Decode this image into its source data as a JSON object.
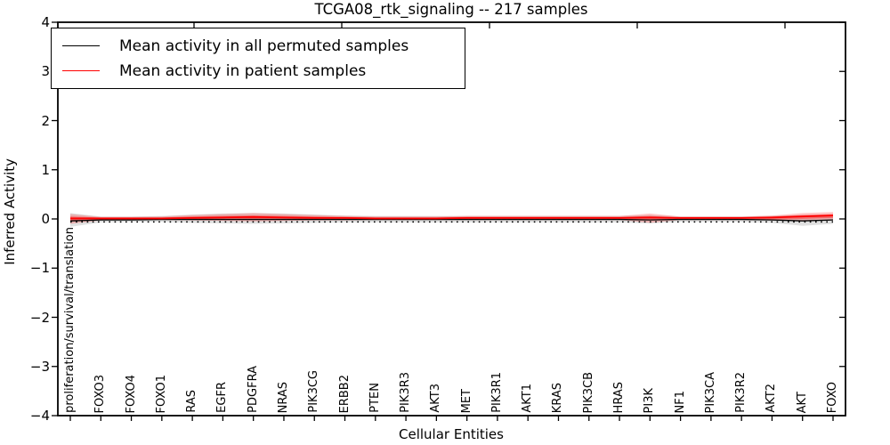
{
  "title": "TCGA08_rtk_signaling -- 217 samples",
  "legend": {
    "items": [
      {
        "label": "Mean activity in all permuted samples",
        "color": "#000000"
      },
      {
        "label": "Mean activity in patient samples",
        "color": "#ff0000"
      }
    ]
  },
  "chart_data": {
    "type": "line",
    "title": "TCGA08_rtk_signaling -- 217 samples",
    "xlabel": "Cellular Entities",
    "ylabel": "Inferred Activity",
    "ylim": [
      -4,
      4
    ],
    "yticks": [
      {
        "value": 4,
        "label": "4"
      },
      {
        "value": 3,
        "label": "3"
      },
      {
        "value": 2,
        "label": "2"
      },
      {
        "value": 1,
        "label": "1"
      },
      {
        "value": 0,
        "label": "0"
      },
      {
        "value": -1,
        "label": "−1"
      },
      {
        "value": -2,
        "label": "−2"
      },
      {
        "value": -3,
        "label": "−3"
      },
      {
        "value": -4,
        "label": "−4"
      }
    ],
    "grid": false,
    "legend_position": "upper left",
    "categories": [
      "proliferation/survival/translation",
      "FOXO3",
      "FOXO4",
      "FOXO1",
      "RAS",
      "EGFR",
      "PDGFRA",
      "NRAS",
      "PIK3CG",
      "ERBB2",
      "PTEN",
      "PIK3R3",
      "AKT3",
      "MET",
      "PIK3R1",
      "AKT1",
      "KRAS",
      "PIK3CB",
      "HRAS",
      "PI3K",
      "NF1",
      "PIK3CA",
      "PIK3R2",
      "AKT2",
      "AKT",
      "FOXO"
    ],
    "series": [
      {
        "name": "Mean activity in all permuted samples",
        "color": "#000000",
        "style": "solid",
        "width": 1.3,
        "values": [
          -0.04,
          -0.02,
          -0.02,
          -0.01,
          -0.01,
          -0.01,
          -0.01,
          -0.01,
          -0.01,
          -0.01,
          -0.01,
          -0.01,
          -0.01,
          -0.01,
          -0.01,
          -0.01,
          -0.01,
          -0.01,
          -0.01,
          -0.02,
          -0.01,
          -0.01,
          -0.01,
          -0.02,
          -0.04,
          -0.02
        ]
      },
      {
        "name": "permuted-lower-dotted",
        "color": "#000000",
        "style": "dotted",
        "width": 1.6,
        "values": [
          -0.06,
          -0.06,
          -0.06,
          -0.06,
          -0.06,
          -0.06,
          -0.06,
          -0.06,
          -0.06,
          -0.06,
          -0.06,
          -0.06,
          -0.06,
          -0.06,
          -0.06,
          -0.06,
          -0.06,
          -0.06,
          -0.06,
          -0.06,
          -0.06,
          -0.06,
          -0.06,
          -0.06,
          -0.06,
          -0.06
        ]
      },
      {
        "name": "Mean activity in patient samples",
        "color": "#ff0000",
        "style": "solid",
        "width": 1.8,
        "values": [
          0.01,
          0.01,
          0.01,
          0.01,
          0.02,
          0.03,
          0.04,
          0.03,
          0.02,
          0.02,
          0.01,
          0.01,
          0.01,
          0.02,
          0.02,
          0.02,
          0.02,
          0.02,
          0.02,
          0.03,
          0.02,
          0.02,
          0.02,
          0.03,
          0.05,
          0.07
        ]
      }
    ],
    "bands": [
      {
        "name": "permuted-sample-spread",
        "color": "rgba(0,0,0,0.12)",
        "upper": [
          0.12,
          0.05,
          0.05,
          0.06,
          0.09,
          0.11,
          0.12,
          0.11,
          0.09,
          0.07,
          0.06,
          0.06,
          0.06,
          0.06,
          0.06,
          0.06,
          0.06,
          0.06,
          0.06,
          0.08,
          0.05,
          0.05,
          0.05,
          0.06,
          0.08,
          0.08
        ],
        "lower": [
          -0.16,
          -0.07,
          -0.06,
          -0.06,
          -0.08,
          -0.09,
          -0.1,
          -0.09,
          -0.08,
          -0.07,
          -0.07,
          -0.07,
          -0.07,
          -0.07,
          -0.07,
          -0.07,
          -0.07,
          -0.07,
          -0.07,
          -0.09,
          -0.06,
          -0.06,
          -0.06,
          -0.08,
          -0.14,
          -0.1
        ]
      },
      {
        "name": "patient-sample-spread",
        "color": "rgba(255,0,0,0.22)",
        "upper": [
          0.1,
          0.04,
          0.04,
          0.05,
          0.08,
          0.1,
          0.12,
          0.1,
          0.08,
          0.06,
          0.05,
          0.05,
          0.05,
          0.06,
          0.06,
          0.06,
          0.06,
          0.06,
          0.06,
          0.11,
          0.05,
          0.05,
          0.05,
          0.07,
          0.12,
          0.14
        ],
        "lower": [
          -0.1,
          -0.03,
          -0.02,
          -0.02,
          -0.03,
          -0.04,
          -0.05,
          -0.04,
          -0.03,
          -0.03,
          -0.02,
          -0.02,
          -0.02,
          -0.02,
          -0.02,
          -0.02,
          -0.02,
          -0.02,
          -0.02,
          -0.08,
          -0.02,
          -0.02,
          -0.02,
          -0.03,
          -0.04,
          -0.03
        ]
      },
      {
        "name": "patient-sample-core",
        "color": "rgba(255,0,0,0.38)",
        "upper": [
          0.05,
          0.03,
          0.03,
          0.03,
          0.05,
          0.06,
          0.07,
          0.06,
          0.05,
          0.04,
          0.03,
          0.03,
          0.03,
          0.04,
          0.04,
          0.04,
          0.04,
          0.04,
          0.04,
          0.06,
          0.03,
          0.03,
          0.03,
          0.05,
          0.08,
          0.1
        ],
        "lower": [
          -0.04,
          -0.01,
          -0.01,
          -0.01,
          -0.01,
          -0.02,
          -0.02,
          -0.02,
          -0.01,
          -0.01,
          -0.01,
          -0.01,
          -0.01,
          -0.01,
          -0.01,
          -0.01,
          -0.01,
          -0.01,
          -0.01,
          -0.03,
          -0.01,
          -0.01,
          -0.01,
          -0.01,
          0.0,
          0.02
        ]
      }
    ]
  }
}
